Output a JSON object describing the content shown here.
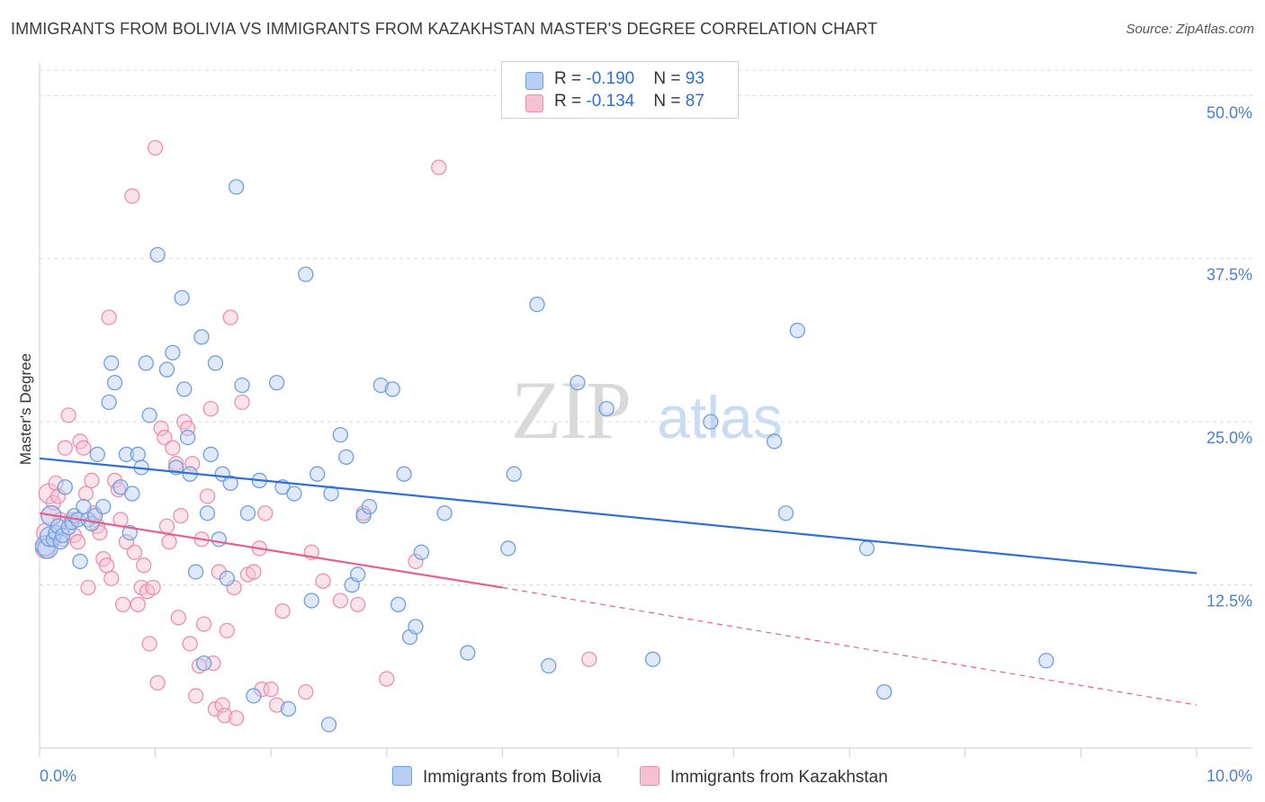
{
  "title": "IMMIGRANTS FROM BOLIVIA VS IMMIGRANTS FROM KAZAKHSTAN MASTER'S DEGREE CORRELATION CHART",
  "source": "Source: ZipAtlas.com",
  "watermark": {
    "zip": "ZIP",
    "atlas": "atlas"
  },
  "colors": {
    "bolivia_fill": "#b7cff3",
    "bolivia_stroke": "#6f9fe0",
    "bolivia_line": "#2f6fd6",
    "kazakhstan_fill": "#f7c0d2",
    "kazakhstan_stroke": "#ec8fb0",
    "kazakhstan_line": "#e4608e",
    "tick_text": "#4a7fd0",
    "grid": "#d9d9d9"
  },
  "legend": {
    "rows": [
      {
        "r_label": "R = ",
        "r_value": "-0.190",
        "n_label": "N = ",
        "n_value": "93"
      },
      {
        "r_label": "R = ",
        "r_value": "-0.134",
        "n_label": "N = ",
        "n_value": "87"
      }
    ]
  },
  "bottom_legend": {
    "bolivia": "Immigrants from Bolivia",
    "kazakhstan": "Immigrants from Kazakhstan"
  },
  "chart_data": {
    "type": "scatter",
    "title": "IMMIGRANTS FROM BOLIVIA VS IMMIGRANTS FROM KAZAKHSTAN MASTER'S DEGREE CORRELATION CHART",
    "xlabel": "",
    "ylabel": "Master's Degree",
    "xlim": [
      0,
      10
    ],
    "ylim": [
      0,
      52.5
    ],
    "x_tick_labels": [
      "0.0%",
      "10.0%"
    ],
    "y_ticks": [
      12.5,
      25.0,
      37.5,
      50.0
    ],
    "y_tick_labels": [
      "12.5%",
      "25.0%",
      "37.5%",
      "50.0%"
    ],
    "grid": "horizontal dashed",
    "legend_placement": "top-center",
    "series": [
      {
        "name": "Immigrants from Bolivia",
        "r": -0.19,
        "n": 93,
        "trend": {
          "x": [
            0.0,
            10.0
          ],
          "y": [
            22.2,
            13.4
          ]
        },
        "points": [
          [
            0.05,
            15.5
          ],
          [
            0.07,
            15.3
          ],
          [
            0.09,
            16.2
          ],
          [
            0.1,
            17.8
          ],
          [
            0.12,
            16.0
          ],
          [
            0.14,
            16.5
          ],
          [
            0.16,
            17.0
          ],
          [
            0.18,
            15.8
          ],
          [
            0.2,
            16.3
          ],
          [
            0.22,
            20.0
          ],
          [
            0.25,
            16.9
          ],
          [
            0.28,
            17.3
          ],
          [
            0.3,
            17.8
          ],
          [
            0.33,
            17.5
          ],
          [
            0.35,
            14.3
          ],
          [
            0.38,
            18.5
          ],
          [
            0.42,
            17.5
          ],
          [
            0.45,
            17.2
          ],
          [
            0.48,
            17.8
          ],
          [
            0.5,
            22.5
          ],
          [
            0.55,
            18.5
          ],
          [
            0.6,
            26.5
          ],
          [
            0.62,
            29.5
          ],
          [
            0.65,
            28.0
          ],
          [
            0.7,
            20.0
          ],
          [
            0.75,
            22.5
          ],
          [
            0.78,
            16.5
          ],
          [
            0.8,
            19.5
          ],
          [
            0.85,
            22.5
          ],
          [
            0.88,
            21.5
          ],
          [
            0.92,
            29.5
          ],
          [
            0.95,
            25.5
          ],
          [
            1.02,
            37.8
          ],
          [
            1.1,
            29.0
          ],
          [
            1.15,
            30.3
          ],
          [
            1.18,
            21.5
          ],
          [
            1.23,
            34.5
          ],
          [
            1.25,
            27.5
          ],
          [
            1.28,
            23.8
          ],
          [
            1.3,
            21.0
          ],
          [
            1.35,
            13.5
          ],
          [
            1.4,
            31.5
          ],
          [
            1.42,
            6.5
          ],
          [
            1.45,
            18.0
          ],
          [
            1.48,
            22.5
          ],
          [
            1.52,
            29.5
          ],
          [
            1.55,
            16.0
          ],
          [
            1.58,
            21.0
          ],
          [
            1.62,
            13.0
          ],
          [
            1.65,
            20.3
          ],
          [
            1.7,
            43.0
          ],
          [
            1.75,
            27.8
          ],
          [
            1.8,
            18.0
          ],
          [
            1.85,
            4.0
          ],
          [
            1.9,
            20.5
          ],
          [
            2.05,
            28.0
          ],
          [
            2.1,
            20.0
          ],
          [
            2.15,
            3.0
          ],
          [
            2.2,
            19.5
          ],
          [
            2.3,
            36.3
          ],
          [
            2.35,
            11.3
          ],
          [
            2.4,
            21.0
          ],
          [
            2.5,
            1.8
          ],
          [
            2.52,
            19.5
          ],
          [
            2.6,
            24.0
          ],
          [
            2.65,
            22.3
          ],
          [
            2.7,
            12.5
          ],
          [
            2.75,
            13.3
          ],
          [
            2.8,
            17.8
          ],
          [
            2.85,
            18.5
          ],
          [
            2.95,
            27.8
          ],
          [
            3.05,
            27.5
          ],
          [
            3.1,
            11.0
          ],
          [
            3.15,
            21.0
          ],
          [
            3.2,
            8.5
          ],
          [
            3.25,
            9.3
          ],
          [
            3.3,
            15.0
          ],
          [
            3.5,
            18.0
          ],
          [
            3.7,
            7.3
          ],
          [
            4.05,
            15.3
          ],
          [
            4.1,
            21.0
          ],
          [
            4.3,
            34.0
          ],
          [
            4.4,
            6.3
          ],
          [
            4.65,
            28.0
          ],
          [
            4.9,
            26.0
          ],
          [
            5.3,
            6.8
          ],
          [
            5.8,
            25.0
          ],
          [
            6.35,
            23.5
          ],
          [
            6.45,
            18.0
          ],
          [
            6.55,
            32.0
          ],
          [
            7.15,
            15.3
          ],
          [
            7.3,
            4.3
          ],
          [
            8.7,
            6.7
          ]
        ]
      },
      {
        "name": "Immigrants from Kazakhstan",
        "r": -0.134,
        "n": 87,
        "trend": {
          "x": [
            0.0,
            4.0
          ],
          "y": [
            18.0,
            12.3
          ]
        },
        "trend_dashed": {
          "x": [
            4.0,
            10.0
          ],
          "y": [
            12.3,
            3.3
          ]
        },
        "points": [
          [
            0.05,
            15.3
          ],
          [
            0.06,
            16.5
          ],
          [
            0.08,
            19.5
          ],
          [
            0.1,
            17.8
          ],
          [
            0.12,
            18.8
          ],
          [
            0.14,
            20.3
          ],
          [
            0.16,
            19.3
          ],
          [
            0.18,
            17.5
          ],
          [
            0.2,
            16.0
          ],
          [
            0.22,
            23.0
          ],
          [
            0.25,
            25.5
          ],
          [
            0.28,
            17.5
          ],
          [
            0.3,
            16.3
          ],
          [
            0.33,
            15.8
          ],
          [
            0.35,
            23.5
          ],
          [
            0.38,
            23.0
          ],
          [
            0.4,
            19.5
          ],
          [
            0.42,
            12.3
          ],
          [
            0.45,
            20.5
          ],
          [
            0.47,
            18.0
          ],
          [
            0.5,
            17.0
          ],
          [
            0.52,
            16.5
          ],
          [
            0.55,
            14.5
          ],
          [
            0.58,
            14.0
          ],
          [
            0.6,
            33.0
          ],
          [
            0.62,
            13.0
          ],
          [
            0.65,
            20.5
          ],
          [
            0.68,
            19.8
          ],
          [
            0.7,
            17.5
          ],
          [
            0.72,
            11.0
          ],
          [
            0.75,
            15.8
          ],
          [
            0.8,
            42.3
          ],
          [
            0.82,
            15.0
          ],
          [
            0.85,
            11.0
          ],
          [
            0.88,
            12.3
          ],
          [
            0.9,
            14.0
          ],
          [
            0.93,
            12.0
          ],
          [
            0.95,
            8.0
          ],
          [
            0.98,
            12.3
          ],
          [
            1.0,
            46.0
          ],
          [
            1.02,
            5.0
          ],
          [
            1.05,
            24.5
          ],
          [
            1.08,
            23.8
          ],
          [
            1.1,
            17.0
          ],
          [
            1.12,
            15.8
          ],
          [
            1.15,
            23.0
          ],
          [
            1.18,
            21.8
          ],
          [
            1.2,
            10.0
          ],
          [
            1.22,
            17.8
          ],
          [
            1.25,
            25.0
          ],
          [
            1.28,
            24.5
          ],
          [
            1.3,
            8.0
          ],
          [
            1.32,
            21.8
          ],
          [
            1.35,
            4.0
          ],
          [
            1.38,
            6.3
          ],
          [
            1.4,
            16.0
          ],
          [
            1.42,
            9.5
          ],
          [
            1.45,
            19.3
          ],
          [
            1.48,
            26.0
          ],
          [
            1.5,
            6.5
          ],
          [
            1.52,
            3.0
          ],
          [
            1.55,
            13.5
          ],
          [
            1.58,
            3.3
          ],
          [
            1.6,
            2.5
          ],
          [
            1.62,
            9.0
          ],
          [
            1.65,
            33.0
          ],
          [
            1.68,
            12.3
          ],
          [
            1.7,
            2.3
          ],
          [
            1.75,
            26.5
          ],
          [
            1.8,
            13.3
          ],
          [
            1.85,
            13.5
          ],
          [
            1.9,
            15.3
          ],
          [
            1.92,
            4.5
          ],
          [
            1.95,
            18.0
          ],
          [
            2.0,
            4.5
          ],
          [
            2.05,
            3.3
          ],
          [
            2.1,
            10.5
          ],
          [
            2.3,
            4.3
          ],
          [
            2.35,
            15.0
          ],
          [
            2.45,
            12.8
          ],
          [
            2.6,
            11.3
          ],
          [
            2.75,
            11.0
          ],
          [
            2.8,
            18.0
          ],
          [
            3.0,
            5.3
          ],
          [
            3.25,
            14.3
          ],
          [
            3.45,
            44.5
          ],
          [
            4.75,
            6.8
          ]
        ]
      }
    ]
  }
}
